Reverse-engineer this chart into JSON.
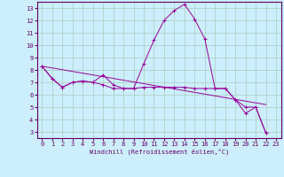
{
  "title": "",
  "xlabel": "Windchill (Refroidissement éolien,°C)",
  "background_color": "#cceeff",
  "grid_color": "#aaccbb",
  "line_color": "#990099",
  "xlim": [
    -0.5,
    23.5
  ],
  "ylim": [
    2.5,
    13.5
  ],
  "xticks": [
    0,
    1,
    2,
    3,
    4,
    5,
    6,
    7,
    8,
    9,
    10,
    11,
    12,
    13,
    14,
    15,
    16,
    17,
    18,
    19,
    20,
    21,
    22,
    23
  ],
  "yticks": [
    3,
    4,
    5,
    6,
    7,
    8,
    9,
    10,
    11,
    12,
    13
  ],
  "series0_x": [
    0,
    1,
    2,
    3,
    4,
    5,
    6,
    7,
    8,
    9,
    10,
    11,
    12,
    13,
    14,
    15,
    16,
    17,
    18,
    19,
    20,
    21,
    22
  ],
  "series0_y": [
    8.3,
    7.3,
    6.6,
    7.0,
    7.1,
    7.0,
    7.6,
    6.8,
    6.5,
    6.5,
    8.5,
    10.4,
    12.0,
    12.8,
    13.3,
    12.1,
    10.5,
    6.5,
    6.5,
    5.6,
    4.5,
    5.0,
    2.9
  ],
  "series1_x": [
    0,
    1,
    2,
    3,
    4,
    5,
    6,
    7,
    8,
    9,
    10,
    11,
    12,
    13,
    14,
    15,
    16,
    17,
    18,
    19,
    20,
    21,
    22
  ],
  "series1_y": [
    8.3,
    7.3,
    6.6,
    7.0,
    7.1,
    7.0,
    6.8,
    6.5,
    6.5,
    6.5,
    6.6,
    6.6,
    6.6,
    6.6,
    6.6,
    6.5,
    6.5,
    6.5,
    6.5,
    5.6,
    5.0,
    5.0,
    2.9
  ],
  "series2_x": [
    0,
    22
  ],
  "series2_y": [
    8.3,
    5.2
  ],
  "tick_fontsize": 5,
  "xlabel_fontsize": 5,
  "tick_color": "#660066",
  "spine_color": "#660066"
}
